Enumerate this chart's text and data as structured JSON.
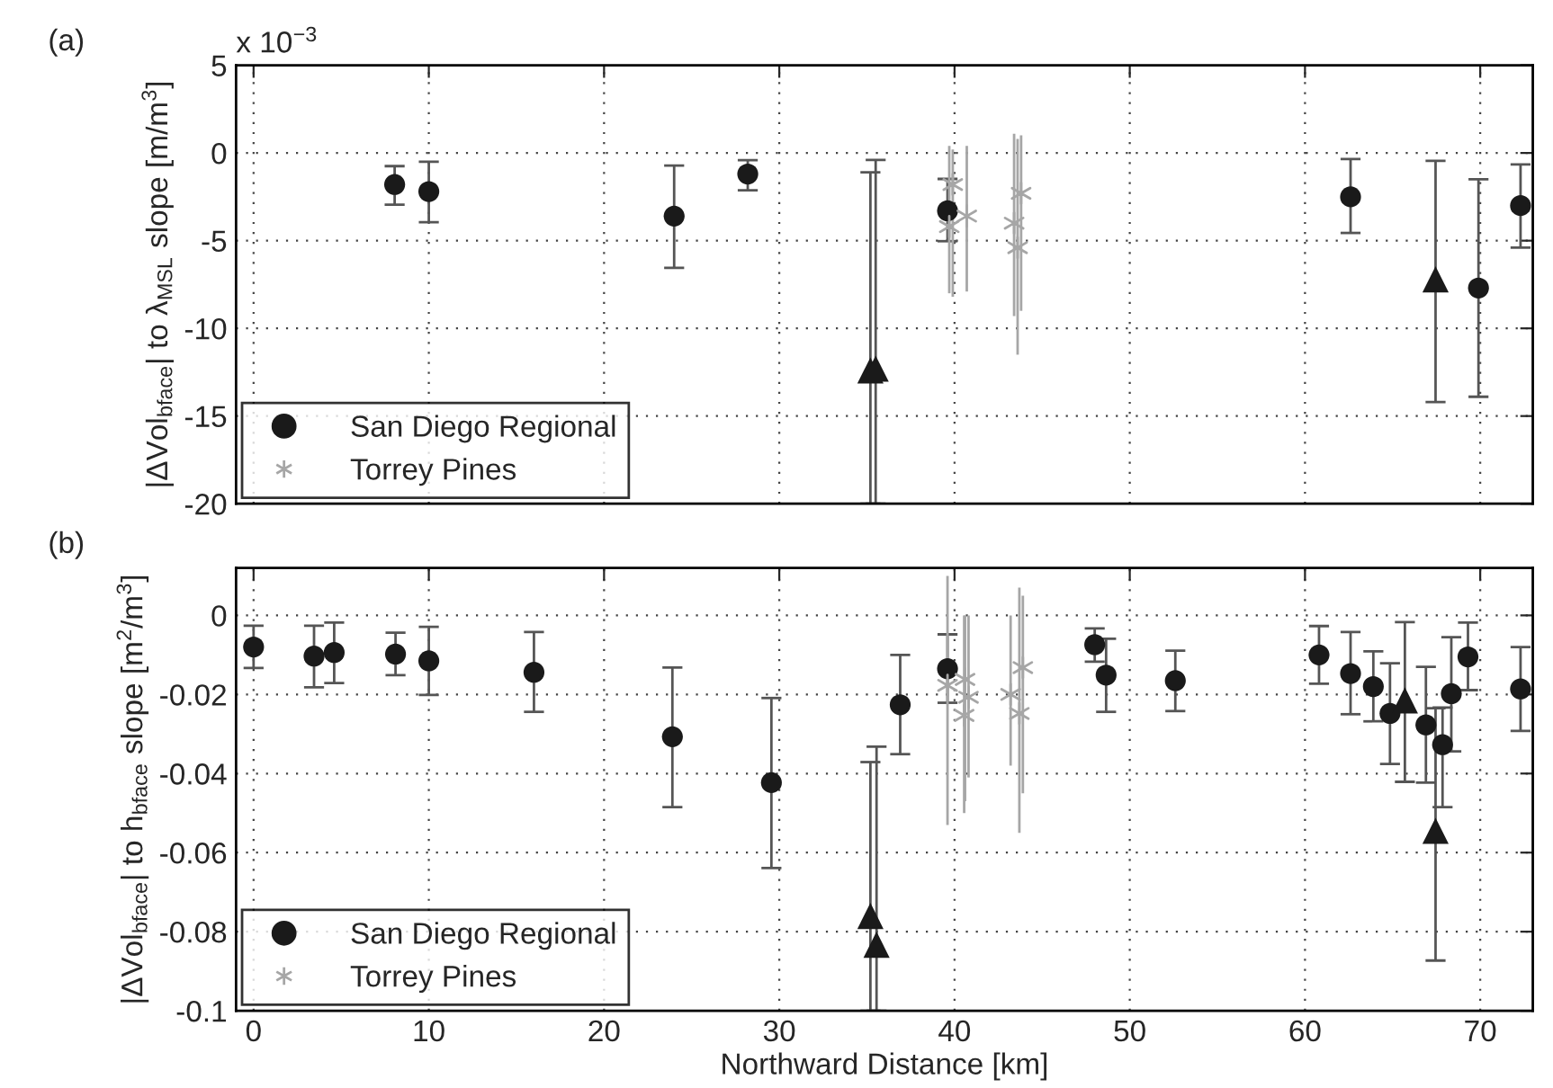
{
  "chart_data": [
    {
      "type": "scatter",
      "ylabel": "|ΔVol$_{bface}$| to λ$_{MSL}$ slope [m/m$^{3}$]",
      "annotations": [
        "(a)",
        "x 10$^{−3}$"
      ],
      "xlim": [
        -1,
        73
      ],
      "xticks": [
        0,
        10,
        20,
        30,
        40,
        50,
        60,
        70
      ],
      "ylim": [
        -20,
        5
      ],
      "yticks": [
        -20,
        -15,
        -10,
        -5,
        0,
        5
      ],
      "grid": true,
      "legend": "bottom left",
      "tick_labels": "y",
      "series": [
        {
          "name": "San Diego Regional",
          "color": "#1a1a1a",
          "marker": "circle",
          "x": [
            8.05,
            10.0,
            24.0,
            28.2,
            39.6,
            62.6,
            69.9,
            72.3
          ],
          "values": [
            -1.8,
            -2.2,
            -3.6,
            -1.2,
            -3.3,
            -2.5,
            -7.7,
            -3.0
          ],
          "errors": [
            [
              -2.95,
              -0.75
            ],
            [
              -3.95,
              -0.5
            ],
            [
              -6.55,
              -0.72
            ],
            [
              -2.13,
              -0.41
            ],
            [
              -5.03,
              -1.48
            ],
            [
              -4.56,
              -0.35
            ],
            [
              -13.9,
              -1.5
            ],
            [
              -5.4,
              -0.65
            ]
          ]
        },
        {
          "color": "#1a1a1a",
          "marker": "triangle",
          "x": [
            35.2,
            35.5,
            67.45
          ],
          "values": [
            -12.4,
            -12.3,
            -7.2
          ],
          "errors": [
            [
              -20,
              -1.1
            ],
            [
              -20,
              -0.4
            ],
            [
              -14.2,
              -0.45
            ]
          ]
        },
        {
          "name": "Torrey Pines",
          "color": "#a6a6a6",
          "marker": "cross",
          "x": [
            39.7,
            39.9,
            40.7,
            43.4,
            43.6,
            43.8
          ],
          "values": [
            -4.2,
            -1.8,
            -3.6,
            -4.0,
            -5.4,
            -2.3
          ],
          "errors": [
            [
              -8.0,
              0.4
            ],
            [
              -8.2,
              0.2
            ],
            [
              -7.9,
              0.4
            ],
            [
              -9.3,
              1.1
            ],
            [
              -11.5,
              0.8
            ],
            [
              -9.0,
              1.0
            ]
          ]
        }
      ]
    },
    {
      "type": "scatter",
      "xlabel": "Northward Distance [km]",
      "ylabel": "|ΔVol$_{bface}$| to h$_{bface}$ slope [m$^{2}$/m$^{3}$]",
      "annotations": [
        "(b)"
      ],
      "xlim": [
        -1,
        73
      ],
      "xticks": [
        0,
        10,
        20,
        30,
        40,
        50,
        60,
        70
      ],
      "ylim": [
        -0.1,
        0.012
      ],
      "yticks": [
        -0.1,
        -0.08,
        -0.06,
        -0.04,
        -0.02,
        0
      ],
      "grid": true,
      "legend": "bottom left",
      "series": [
        {
          "name": "San Diego Regional",
          "color": "#1a1a1a",
          "marker": "circle",
          "x": [
            0.0,
            3.45,
            4.6,
            8.1,
            10.0,
            16.0,
            23.9,
            29.55,
            36.9,
            39.6,
            48.0,
            48.65,
            52.6,
            60.8,
            62.6,
            63.9,
            64.85,
            66.9,
            67.85,
            68.35,
            69.3,
            72.3
          ],
          "values": [
            -0.008,
            -0.0103,
            -0.0094,
            -0.0098,
            -0.0115,
            -0.0144,
            -0.0307,
            -0.0423,
            -0.0226,
            -0.0135,
            -0.0074,
            -0.0151,
            -0.0165,
            -0.01,
            -0.0147,
            -0.018,
            -0.0248,
            -0.0277,
            -0.0327,
            -0.0198,
            -0.0105,
            -0.0186
          ],
          "errors": [
            [
              -0.0133,
              -0.0026
            ],
            [
              -0.0182,
              -0.0026
            ],
            [
              -0.0171,
              -0.0018
            ],
            [
              -0.0151,
              -0.0044
            ],
            [
              -0.0201,
              -0.0029
            ],
            [
              -0.0244,
              -0.0042
            ],
            [
              -0.0485,
              -0.0132
            ],
            [
              -0.0639,
              -0.0209
            ],
            [
              -0.0351,
              -0.01
            ],
            [
              -0.0221,
              -0.0048
            ],
            [
              -0.0117,
              -0.0033
            ],
            [
              -0.0244,
              -0.0059
            ],
            [
              -0.0242,
              -0.0089
            ],
            [
              -0.0173,
              -0.0027
            ],
            [
              -0.025,
              -0.0042
            ],
            [
              -0.0268,
              -0.0091
            ],
            [
              -0.0376,
              -0.0121
            ],
            [
              -0.0423,
              -0.013
            ],
            [
              -0.0485,
              -0.0233
            ],
            [
              -0.0344,
              -0.0055
            ],
            [
              -0.0189,
              -0.0018
            ],
            [
              -0.0292,
              -0.008
            ]
          ]
        },
        {
          "color": "#1a1a1a",
          "marker": "triangle",
          "x": [
            35.2,
            35.55,
            65.7,
            67.45
          ],
          "values": [
            -0.076,
            -0.0833,
            -0.0215,
            -0.0545
          ],
          "errors": [
            [
              -0.1,
              -0.0371
            ],
            [
              -0.1,
              -0.0332
            ],
            [
              -0.0421,
              -0.0017
            ],
            [
              -0.0873,
              -0.0235
            ]
          ]
        },
        {
          "name": "Torrey Pines",
          "color": "#a6a6a6",
          "marker": "cross",
          "x": [
            39.6,
            40.55,
            40.6,
            40.8,
            43.2,
            43.7,
            43.9
          ],
          "values": [
            -0.0177,
            -0.0253,
            -0.0162,
            -0.0207,
            -0.02,
            -0.0248,
            -0.0132
          ],
          "errors": [
            [
              -0.053,
              0.01
            ],
            [
              -0.05,
              0.0
            ],
            [
              -0.047,
              0.0
            ],
            [
              -0.041,
              0.0
            ],
            [
              -0.038,
              0.0
            ],
            [
              -0.055,
              0.007
            ],
            [
              -0.045,
              0.005
            ]
          ]
        }
      ]
    }
  ]
}
